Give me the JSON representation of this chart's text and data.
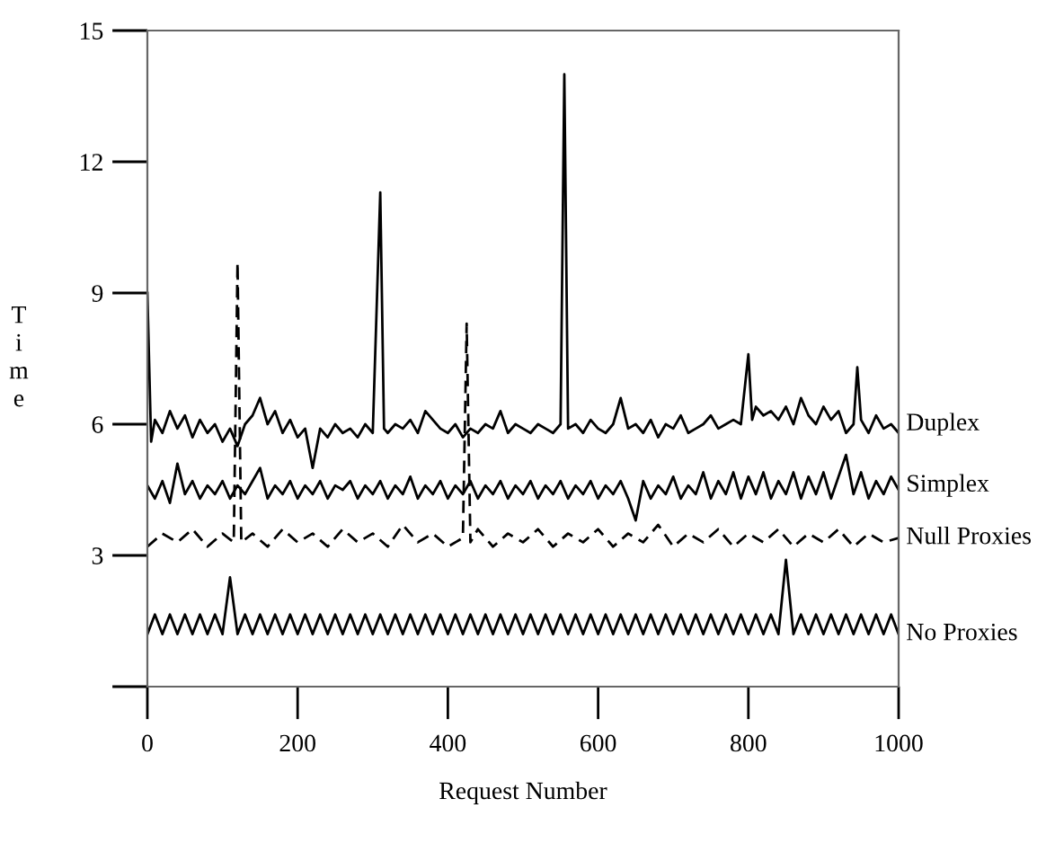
{
  "chart_data": {
    "type": "line",
    "xlabel": "Request Number",
    "ylabel": "Time",
    "xlim": [
      0,
      1000
    ],
    "xticks": [
      0,
      200,
      400,
      600,
      800,
      1000
    ],
    "ylim": [
      0,
      15
    ],
    "yticks": [
      {
        "value": 0,
        "label": null
      },
      3,
      6,
      9,
      12,
      15
    ],
    "grid": false,
    "legend": false,
    "marker": "none",
    "series": [
      {
        "name": "Duplex",
        "color": "#000000",
        "line_style": "solid",
        "x": [
          0,
          5,
          10,
          20,
          30,
          40,
          50,
          60,
          70,
          80,
          90,
          100,
          110,
          120,
          130,
          140,
          150,
          160,
          170,
          180,
          190,
          200,
          210,
          220,
          230,
          240,
          250,
          260,
          270,
          280,
          290,
          300,
          310,
          315,
          320,
          330,
          340,
          350,
          360,
          370,
          380,
          390,
          400,
          410,
          420,
          430,
          440,
          450,
          460,
          470,
          480,
          490,
          500,
          510,
          520,
          530,
          540,
          550,
          555,
          560,
          570,
          580,
          590,
          600,
          610,
          620,
          630,
          640,
          650,
          660,
          670,
          680,
          690,
          700,
          710,
          720,
          730,
          740,
          750,
          760,
          770,
          780,
          790,
          800,
          805,
          810,
          820,
          830,
          840,
          850,
          860,
          870,
          880,
          890,
          900,
          910,
          920,
          930,
          940,
          945,
          950,
          960,
          970,
          980,
          990,
          1000
        ],
        "values": [
          9.0,
          5.6,
          6.1,
          5.8,
          6.3,
          5.9,
          6.2,
          5.7,
          6.1,
          5.8,
          6.0,
          5.6,
          5.9,
          5.5,
          6.0,
          6.2,
          6.6,
          6.0,
          6.3,
          5.8,
          6.1,
          5.7,
          5.9,
          5.0,
          5.9,
          5.7,
          6.0,
          5.8,
          5.9,
          5.7,
          6.0,
          5.8,
          11.3,
          5.9,
          5.8,
          6.0,
          5.9,
          6.1,
          5.8,
          6.3,
          6.1,
          5.9,
          5.8,
          6.0,
          5.7,
          5.9,
          5.8,
          6.0,
          5.9,
          6.3,
          5.8,
          6.0,
          5.9,
          5.8,
          6.0,
          5.9,
          5.8,
          6.0,
          14.0,
          5.9,
          6.0,
          5.8,
          6.1,
          5.9,
          5.8,
          6.0,
          6.6,
          5.9,
          6.0,
          5.8,
          6.1,
          5.7,
          6.0,
          5.9,
          6.2,
          5.8,
          5.9,
          6.0,
          6.2,
          5.9,
          6.0,
          6.1,
          6.0,
          7.6,
          6.1,
          6.4,
          6.2,
          6.3,
          6.1,
          6.4,
          6.0,
          6.6,
          6.2,
          6.0,
          6.4,
          6.1,
          6.3,
          5.8,
          6.0,
          7.3,
          6.1,
          5.8,
          6.2,
          5.9,
          6.0,
          5.8
        ]
      },
      {
        "name": "Simplex",
        "color": "#000000",
        "line_style": "solid",
        "x": [
          0,
          10,
          20,
          30,
          40,
          50,
          60,
          70,
          80,
          90,
          100,
          110,
          120,
          130,
          140,
          150,
          160,
          170,
          180,
          190,
          200,
          210,
          220,
          230,
          240,
          250,
          260,
          270,
          280,
          290,
          300,
          310,
          320,
          330,
          340,
          350,
          360,
          370,
          380,
          390,
          400,
          410,
          420,
          430,
          440,
          450,
          460,
          470,
          480,
          490,
          500,
          510,
          520,
          530,
          540,
          550,
          560,
          570,
          580,
          590,
          600,
          610,
          620,
          630,
          640,
          650,
          660,
          670,
          680,
          690,
          700,
          710,
          720,
          730,
          740,
          750,
          760,
          770,
          780,
          790,
          800,
          810,
          820,
          830,
          840,
          850,
          860,
          870,
          880,
          890,
          900,
          910,
          920,
          930,
          940,
          950,
          960,
          970,
          980,
          990,
          1000
        ],
        "values": [
          4.6,
          4.3,
          4.7,
          4.2,
          5.1,
          4.4,
          4.7,
          4.3,
          4.6,
          4.4,
          4.7,
          4.3,
          4.6,
          4.4,
          4.7,
          5.0,
          4.3,
          4.6,
          4.4,
          4.7,
          4.3,
          4.6,
          4.4,
          4.7,
          4.3,
          4.6,
          4.5,
          4.7,
          4.3,
          4.6,
          4.4,
          4.7,
          4.3,
          4.6,
          4.4,
          4.8,
          4.3,
          4.6,
          4.4,
          4.7,
          4.3,
          4.6,
          4.4,
          4.7,
          4.3,
          4.6,
          4.4,
          4.7,
          4.3,
          4.6,
          4.4,
          4.7,
          4.3,
          4.6,
          4.4,
          4.7,
          4.3,
          4.6,
          4.4,
          4.7,
          4.3,
          4.6,
          4.4,
          4.7,
          4.3,
          3.8,
          4.7,
          4.3,
          4.6,
          4.4,
          4.8,
          4.3,
          4.6,
          4.4,
          4.9,
          4.3,
          4.7,
          4.4,
          4.9,
          4.3,
          4.8,
          4.4,
          4.9,
          4.3,
          4.7,
          4.4,
          4.9,
          4.3,
          4.8,
          4.4,
          4.9,
          4.3,
          4.8,
          5.3,
          4.4,
          4.9,
          4.3,
          4.7,
          4.4,
          4.8,
          4.5
        ]
      },
      {
        "name": "Null Proxies",
        "color": "#000000",
        "line_style": "dashed",
        "x": [
          0,
          20,
          40,
          60,
          80,
          100,
          115,
          120,
          125,
          140,
          160,
          180,
          200,
          220,
          240,
          260,
          280,
          300,
          320,
          340,
          360,
          380,
          400,
          420,
          425,
          430,
          440,
          460,
          480,
          500,
          520,
          540,
          560,
          580,
          600,
          620,
          640,
          660,
          680,
          700,
          720,
          740,
          760,
          780,
          800,
          820,
          840,
          860,
          880,
          900,
          920,
          940,
          960,
          980,
          1000
        ],
        "values": [
          3.2,
          3.5,
          3.3,
          3.6,
          3.2,
          3.5,
          3.3,
          9.7,
          3.3,
          3.5,
          3.2,
          3.6,
          3.3,
          3.5,
          3.2,
          3.6,
          3.3,
          3.5,
          3.2,
          3.7,
          3.3,
          3.5,
          3.2,
          3.4,
          8.3,
          3.3,
          3.6,
          3.2,
          3.5,
          3.3,
          3.6,
          3.2,
          3.5,
          3.3,
          3.6,
          3.2,
          3.5,
          3.3,
          3.7,
          3.2,
          3.5,
          3.3,
          3.6,
          3.2,
          3.5,
          3.3,
          3.6,
          3.2,
          3.5,
          3.3,
          3.6,
          3.2,
          3.5,
          3.3,
          3.4
        ]
      },
      {
        "name": "No Proxies",
        "color": "#000000",
        "line_style": "solid",
        "x": [
          0,
          10,
          20,
          30,
          40,
          50,
          60,
          70,
          80,
          90,
          100,
          110,
          120,
          130,
          140,
          150,
          160,
          170,
          180,
          190,
          200,
          210,
          220,
          230,
          240,
          250,
          260,
          270,
          280,
          290,
          300,
          310,
          320,
          330,
          340,
          350,
          360,
          370,
          380,
          390,
          400,
          410,
          420,
          430,
          440,
          450,
          460,
          470,
          480,
          490,
          500,
          510,
          520,
          530,
          540,
          550,
          560,
          570,
          580,
          590,
          600,
          610,
          620,
          630,
          640,
          650,
          660,
          670,
          680,
          690,
          700,
          710,
          720,
          730,
          740,
          750,
          760,
          770,
          780,
          790,
          800,
          810,
          820,
          830,
          840,
          850,
          860,
          870,
          880,
          890,
          900,
          910,
          920,
          930,
          940,
          950,
          960,
          970,
          980,
          990,
          1000
        ],
        "values": [
          1.2,
          1.65,
          1.2,
          1.65,
          1.2,
          1.65,
          1.2,
          1.65,
          1.2,
          1.65,
          1.2,
          2.5,
          1.2,
          1.65,
          1.2,
          1.65,
          1.2,
          1.65,
          1.2,
          1.65,
          1.2,
          1.65,
          1.2,
          1.65,
          1.2,
          1.65,
          1.2,
          1.65,
          1.2,
          1.65,
          1.2,
          1.65,
          1.2,
          1.65,
          1.2,
          1.65,
          1.2,
          1.65,
          1.2,
          1.65,
          1.2,
          1.65,
          1.2,
          1.65,
          1.2,
          1.65,
          1.2,
          1.65,
          1.2,
          1.65,
          1.2,
          1.65,
          1.2,
          1.65,
          1.2,
          1.65,
          1.2,
          1.65,
          1.2,
          1.65,
          1.2,
          1.65,
          1.2,
          1.65,
          1.2,
          1.65,
          1.2,
          1.65,
          1.2,
          1.65,
          1.2,
          1.65,
          1.2,
          1.65,
          1.2,
          1.65,
          1.2,
          1.65,
          1.2,
          1.65,
          1.2,
          1.65,
          1.2,
          1.65,
          1.2,
          2.9,
          1.2,
          1.65,
          1.2,
          1.65,
          1.2,
          1.65,
          1.2,
          1.65,
          1.2,
          1.65,
          1.2,
          1.65,
          1.2,
          1.65,
          1.2
        ]
      }
    ]
  }
}
